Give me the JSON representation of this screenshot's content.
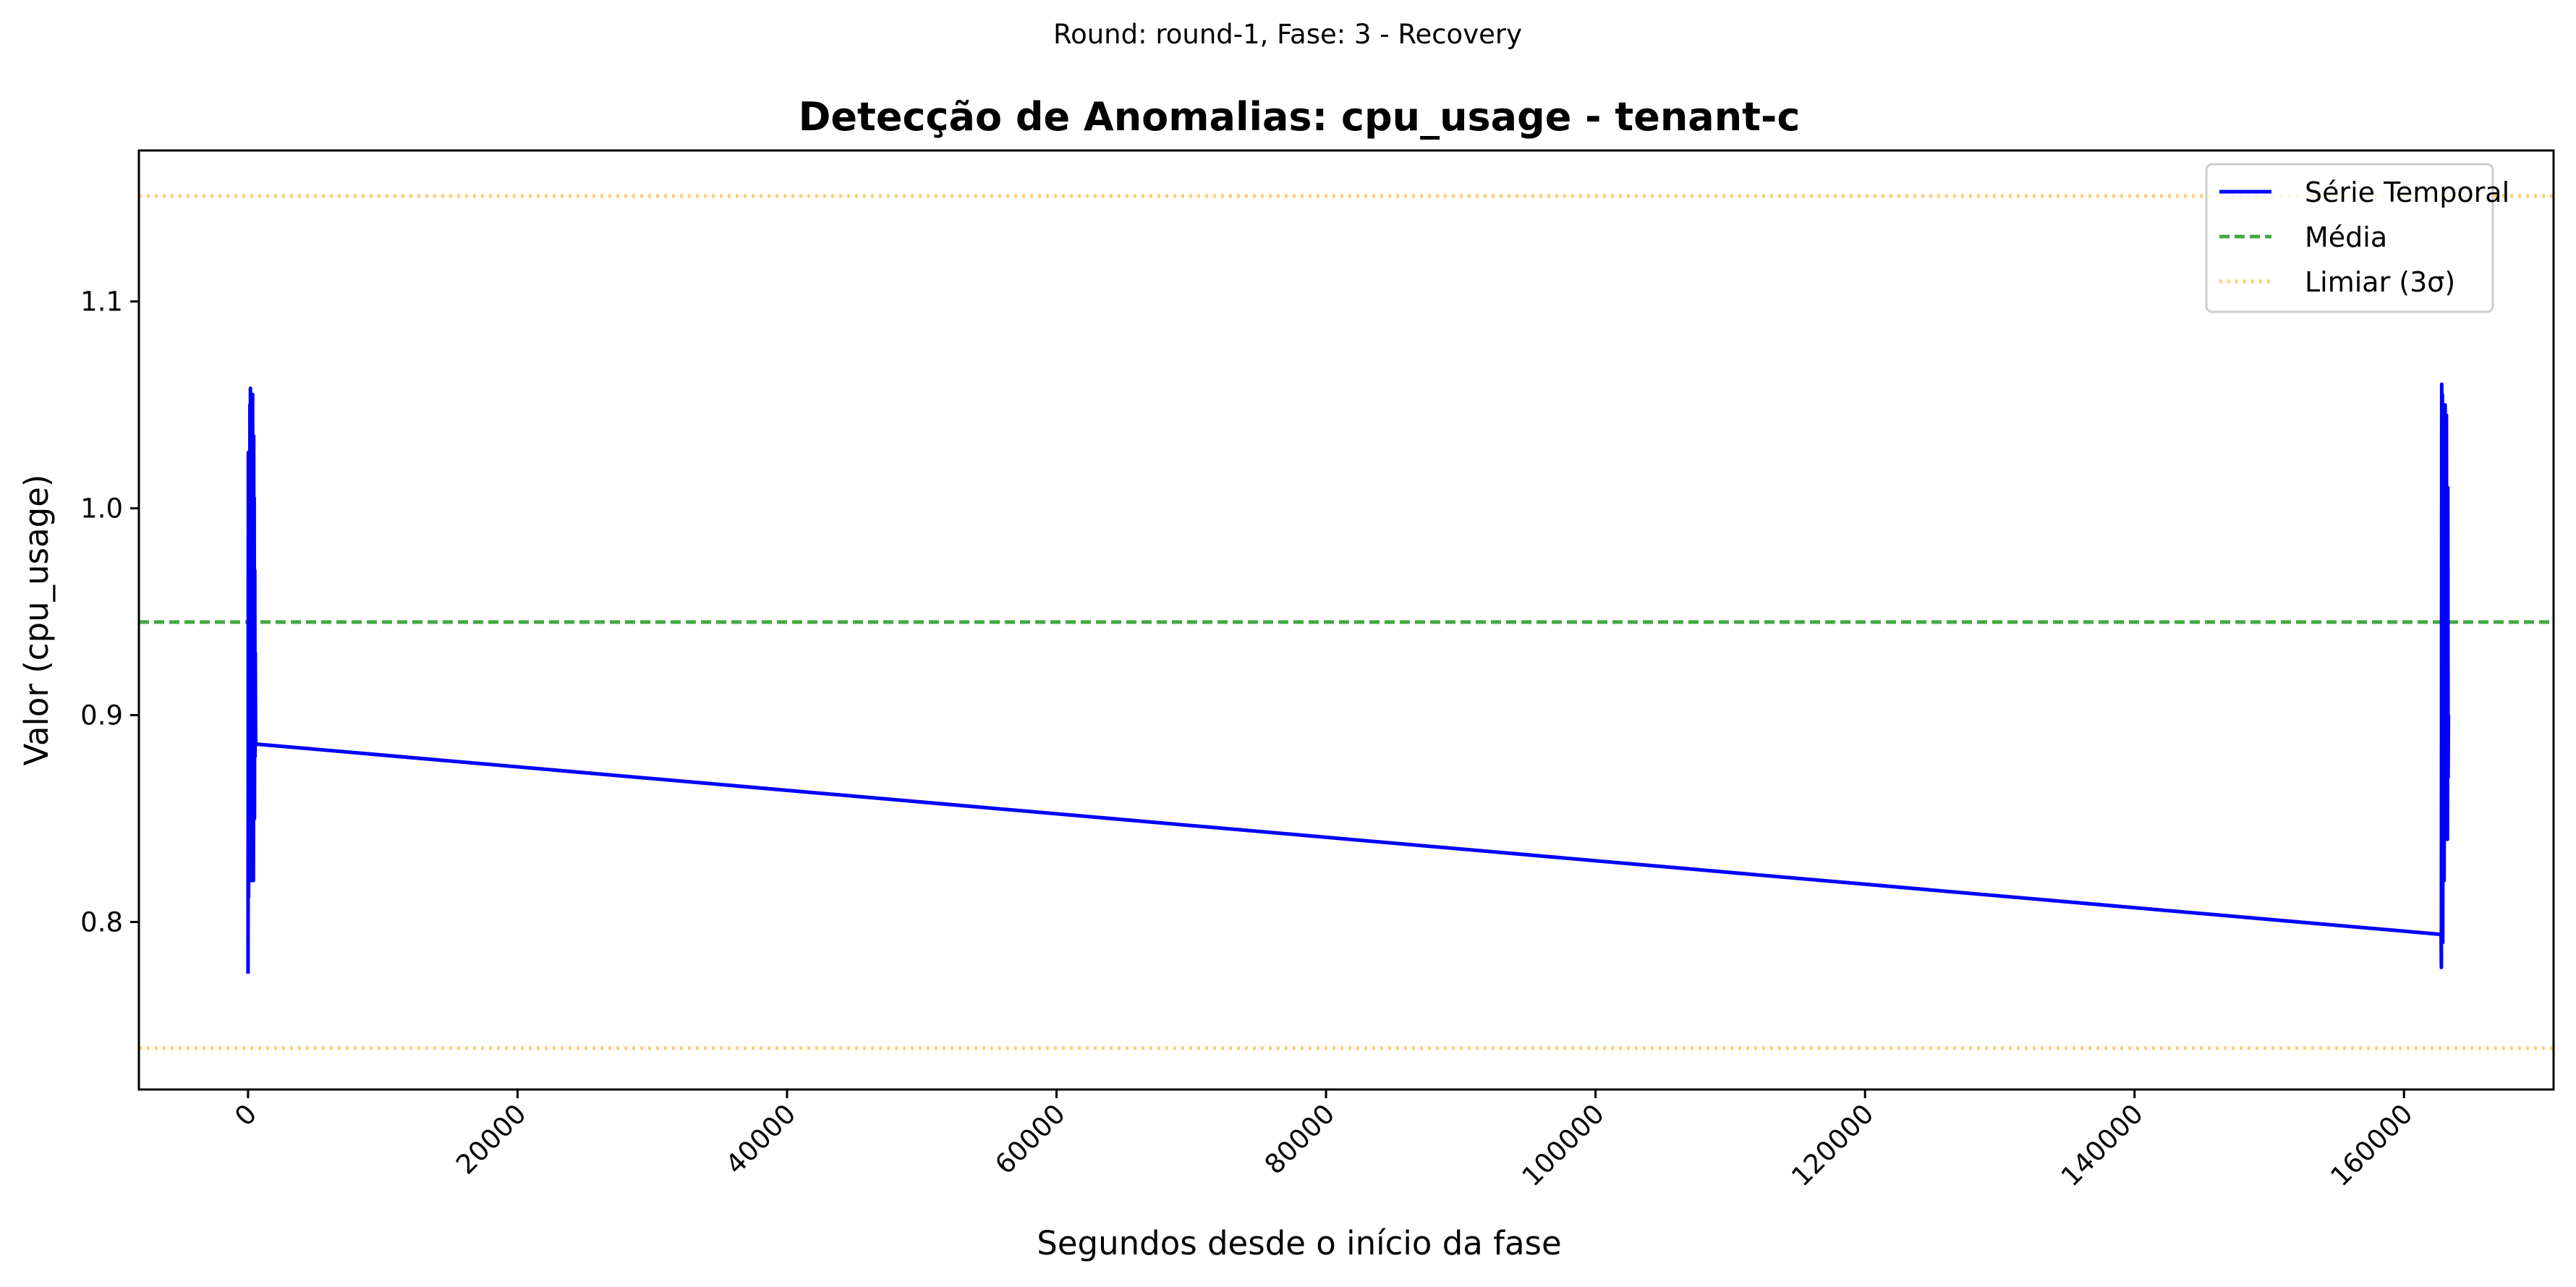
{
  "chart_data": {
    "type": "line",
    "suptitle": "Round: round-1, Fase: 3 - Recovery",
    "title": "Detecção de Anomalias: cpu_usage - tenant-c",
    "xlabel": "Segundos desde o início da fase",
    "ylabel": "Valor (cpu_usage)",
    "xlim": [
      -8100,
      171100
    ],
    "ylim": [
      0.719,
      1.173
    ],
    "x_ticks": [
      0,
      20000,
      40000,
      60000,
      80000,
      100000,
      120000,
      140000,
      160000
    ],
    "y_ticks": [
      0.8,
      0.9,
      1.0,
      1.1
    ],
    "x_tick_labels": [
      "0",
      "20000",
      "40000",
      "60000",
      "80000",
      "100000",
      "120000",
      "140000",
      "160000"
    ],
    "y_tick_labels": [
      "0.8",
      "0.9",
      "1.0",
      "1.1"
    ],
    "grid": false,
    "legend_placement": "top-right",
    "series": [
      {
        "name": "Série Temporal",
        "style": "solid",
        "color": "#0000ff",
        "x": [
          0,
          20,
          40,
          60,
          80,
          100,
          120,
          140,
          160,
          180,
          200,
          220,
          240,
          260,
          280,
          300,
          320,
          340,
          360,
          380,
          400,
          420,
          440,
          460,
          480,
          500,
          520,
          540,
          560,
          580,
          162750,
          162775,
          162800,
          162825,
          162850,
          162875,
          162900,
          162925,
          162950,
          162975,
          163000,
          163025,
          163050,
          163075,
          163100,
          163125,
          163150,
          163175,
          163200,
          163225,
          163250,
          163275,
          163300
        ],
        "y": [
          0.775,
          1.027,
          0.812,
          0.95,
          0.872,
          1.02,
          0.83,
          1.05,
          0.86,
          1.058,
          0.82,
          1.04,
          0.9,
          1.0,
          0.835,
          1.045,
          0.87,
          1.055,
          0.83,
          0.99,
          0.82,
          1.035,
          0.9,
          1.005,
          0.85,
          0.97,
          0.88,
          0.93,
          0.89,
          0.886,
          0.794,
          0.778,
          1.06,
          0.8,
          1.055,
          0.79,
          1.04,
          0.85,
          1.02,
          0.82,
          1.0,
          0.84,
          1.05,
          0.86,
          0.98,
          0.84,
          1.045,
          0.86,
          0.95,
          0.84,
          1.01,
          0.87,
          0.9
        ]
      },
      {
        "name": "Média",
        "style": "dashed",
        "color": "#2ca02c",
        "y": 0.945
      },
      {
        "name": "Limiar (3σ)",
        "style": "dotted",
        "color": "#ffa500",
        "y": [
          1.151,
          0.739
        ]
      }
    ]
  }
}
